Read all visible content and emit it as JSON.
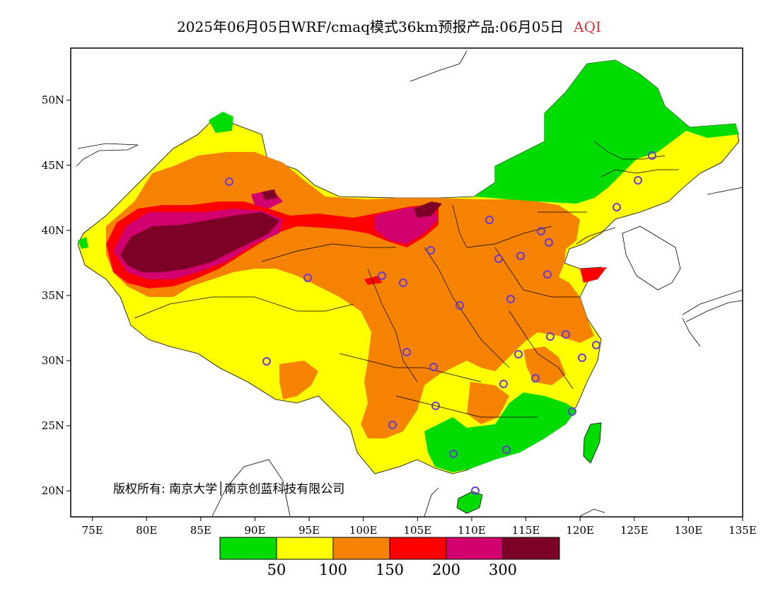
{
  "title": {
    "main": "2025年06月05日WRF/cmaq模式36km预报产品:06月05日",
    "variable": "AQI",
    "variable_color": "#e0303a"
  },
  "map": {
    "lon_range": [
      73,
      135
    ],
    "lat_range": [
      18,
      54
    ],
    "x_ticks": [
      "75E",
      "80E",
      "85E",
      "90E",
      "95E",
      "100E",
      "105E",
      "110E",
      "115E",
      "120E",
      "125E",
      "130E",
      "135E"
    ],
    "y_ticks": [
      "20N",
      "25N",
      "30N",
      "35N",
      "40N",
      "45N",
      "50N"
    ],
    "copyright": "版权所有: 南京大学│南京创蓝科技有限公司",
    "station_marker_color": "#6a3ad6"
  },
  "legend": {
    "colors": [
      "#00dc00",
      "#ffff00",
      "#f58200",
      "#ff0000",
      "#d2006e",
      "#7d0026"
    ],
    "labels": [
      "50",
      "100",
      "150",
      "200",
      "300"
    ]
  }
}
